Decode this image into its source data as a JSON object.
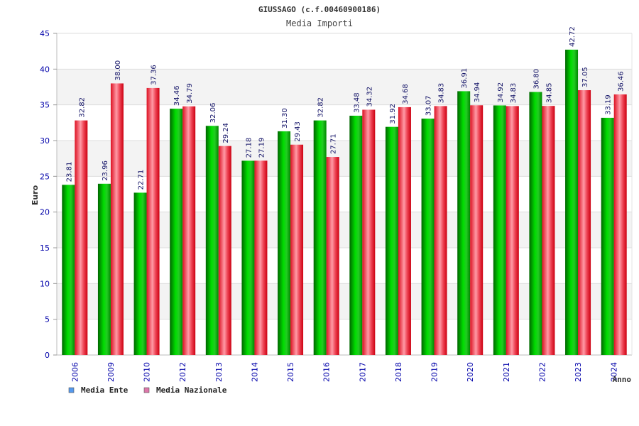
{
  "chart_data": {
    "type": "bar",
    "title": "GIUSSAGO (c.f.00460900186)",
    "subtitle": "Media Importi",
    "xlabel": "Anno",
    "ylabel": "Euro",
    "ylim": [
      0,
      45
    ],
    "yticks": [
      0,
      5,
      10,
      15,
      20,
      25,
      30,
      35,
      40,
      45
    ],
    "grid": true,
    "legend_position": "bottom-left",
    "categories": [
      "2006",
      "2009",
      "2010",
      "2012",
      "2013",
      "2014",
      "2015",
      "2016",
      "2017",
      "2018",
      "2019",
      "2020",
      "2021",
      "2022",
      "2023",
      "2024"
    ],
    "series": [
      {
        "name": "Media Ente",
        "legend_color": "#5599ee",
        "bar_color": "#00bb00",
        "values": [
          23.81,
          23.96,
          22.71,
          34.46,
          32.06,
          27.18,
          31.3,
          32.82,
          33.48,
          31.92,
          33.07,
          36.91,
          34.92,
          36.8,
          42.72,
          33.19
        ],
        "labels": [
          "23.81",
          "23.96",
          "22.71",
          "34.46",
          "32.06",
          "27.18",
          "31.30",
          "32.82",
          "33.48",
          "31.92",
          "33.07",
          "36.91",
          "34.92",
          "36.80",
          "42.72",
          "33.19"
        ]
      },
      {
        "name": "Media Nazionale",
        "legend_color": "#dd77aa",
        "bar_color": "#ee2233",
        "values": [
          32.82,
          38.0,
          37.36,
          34.79,
          29.24,
          27.19,
          29.43,
          27.71,
          34.32,
          34.68,
          34.83,
          34.94,
          34.83,
          34.85,
          37.05,
          36.46
        ],
        "labels": [
          "32.82",
          "38.00",
          "37.36",
          "34.79",
          "29.24",
          "27.19",
          "29.43",
          "27.71",
          "34.32",
          "34.68",
          "34.83",
          "34.94",
          "34.83",
          "34.85",
          "37.05",
          "36.46"
        ]
      }
    ]
  }
}
